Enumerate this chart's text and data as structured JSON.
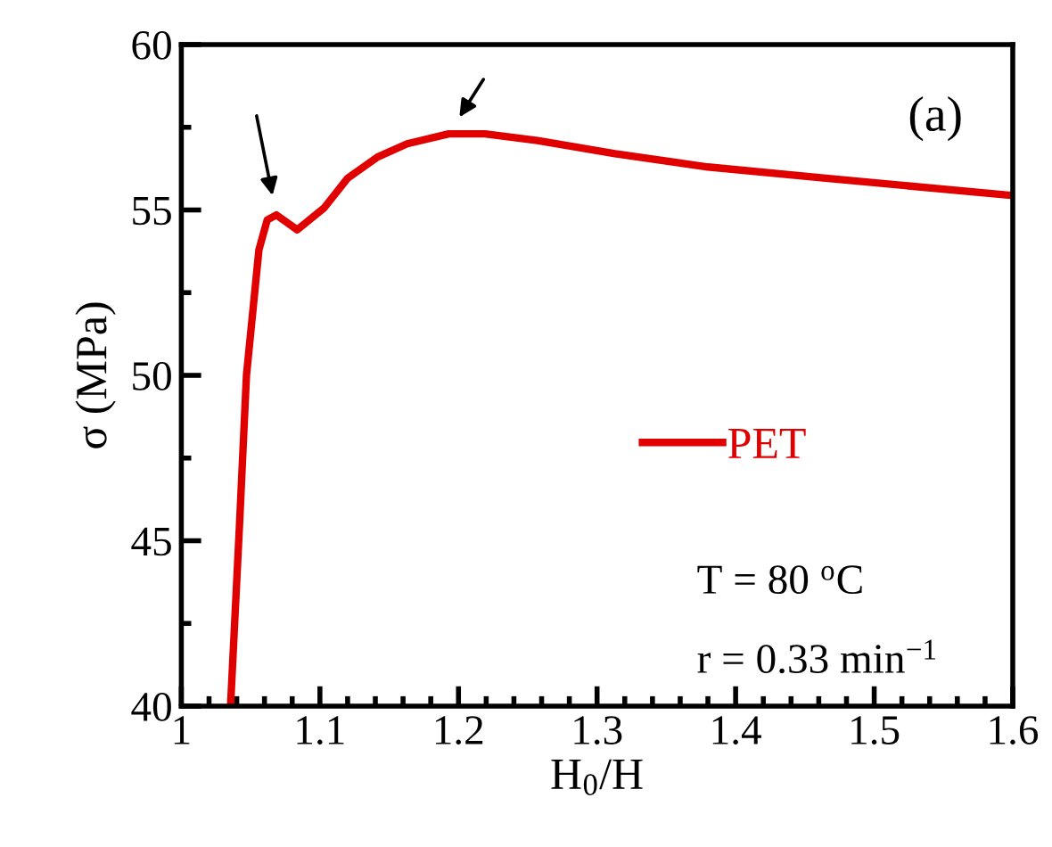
{
  "chart_data": {
    "type": "line",
    "xlabel": "H$_{0}$/H",
    "ylabel": "σ (MPa)",
    "xlim": [
      1,
      1.6
    ],
    "xticks": [
      1,
      1.1,
      1.2,
      1.3,
      1.4,
      1.5,
      1.6
    ],
    "ylim": [
      40,
      60
    ],
    "yticks": [
      40,
      45,
      50,
      55,
      60
    ],
    "series": [
      {
        "name": "PET",
        "color": "#e00000",
        "x": [
          1.0355,
          1.042,
          1.047,
          1.056,
          1.062,
          1.0686,
          1.0836,
          1.103,
          1.12,
          1.1416,
          1.163,
          1.193,
          1.219,
          1.257,
          1.313,
          1.38,
          1.465,
          1.596
        ],
        "values": [
          40,
          45.5,
          50.0,
          53.8,
          54.7,
          54.85,
          54.4,
          55.06,
          55.96,
          56.6,
          57.0,
          57.3,
          57.3,
          57.1,
          56.7,
          56.3,
          55.96,
          55.45
        ]
      }
    ],
    "legend": "bottom right",
    "grid": false,
    "marker": "none",
    "line_style": "solid",
    "annotations": [
      "(a)",
      "T = 80 $^{o}$C",
      "r = 0.33 min$^{−1}$"
    ]
  }
}
